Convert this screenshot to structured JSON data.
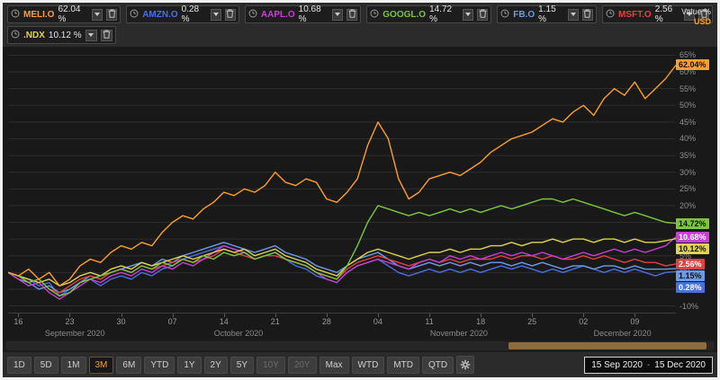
{
  "header": {
    "value_axis_label": "Value %",
    "currency_label": "USD",
    "instruments": [
      {
        "ticker": "MELI.O",
        "change": "62.04 %",
        "color": "#ff9e2b"
      },
      {
        "ticker": "AMZN.O",
        "change": "0.28 %",
        "color": "#4a6fe3"
      },
      {
        "ticker": "AAPL.O",
        "change": "10.68 %",
        "color": "#c93fd4"
      },
      {
        "ticker": "GOOGL.O",
        "change": "14.72 %",
        "color": "#7cc63f"
      },
      {
        "ticker": "FB.O",
        "change": "1.15 %",
        "color": "#6b9ae8"
      },
      {
        "ticker": "MSFT.O",
        "change": "2.56 %",
        "color": "#e2413e"
      },
      {
        "ticker": ".NDX",
        "change": "10.12 %",
        "color": "#ded253"
      }
    ]
  },
  "chart_data": {
    "type": "line",
    "title": "",
    "ylabel": "Value %",
    "currency": "USD",
    "ylim": [
      -12,
      67
    ],
    "grid_step": 5,
    "legend_position": "top",
    "x_ticks": [
      {
        "pos": 0.0154,
        "label": "16"
      },
      {
        "pos": 0.0923,
        "label": "23"
      },
      {
        "pos": 0.1692,
        "label": "30"
      },
      {
        "pos": 0.2462,
        "label": "07"
      },
      {
        "pos": 0.3231,
        "label": "14"
      },
      {
        "pos": 0.4,
        "label": "21"
      },
      {
        "pos": 0.4769,
        "label": "28"
      },
      {
        "pos": 0.5538,
        "label": "04"
      },
      {
        "pos": 0.6308,
        "label": "11"
      },
      {
        "pos": 0.7077,
        "label": "18"
      },
      {
        "pos": 0.7846,
        "label": "25"
      },
      {
        "pos": 0.8615,
        "label": "02"
      },
      {
        "pos": 0.9385,
        "label": "09"
      }
    ],
    "month_labels": [
      {
        "pos": 0.1,
        "label": "September 2020"
      },
      {
        "pos": 0.345,
        "label": "October 2020"
      },
      {
        "pos": 0.675,
        "label": "November 2020"
      },
      {
        "pos": 0.92,
        "label": "December 2020"
      }
    ],
    "series": [
      {
        "name": "AMZN.O",
        "color": "#4a6fe3",
        "last_label": "0.28%",
        "badge_text_color": "#ffffff",
        "values": [
          0,
          -1,
          -2,
          -4,
          -3,
          -7,
          -5,
          -3,
          -2,
          -4,
          -2,
          -1,
          -2,
          0,
          -1,
          1,
          2,
          4,
          5,
          6,
          7,
          8,
          7,
          6,
          4,
          5,
          6,
          4,
          2,
          1,
          -1,
          -2,
          -3,
          0,
          2,
          3,
          4,
          2,
          0,
          -1,
          0,
          1,
          0,
          1,
          0,
          1,
          0,
          1,
          2,
          1,
          2,
          1,
          0,
          1,
          0,
          1,
          2,
          1,
          0,
          1,
          0,
          1,
          0,
          -1,
          0,
          0.28
        ]
      },
      {
        "name": "FB.O",
        "color": "#6b9ae8",
        "last_label": "1.15%",
        "badge_text_color": "#101010",
        "values": [
          0,
          -2,
          -3,
          -5,
          -4,
          -6,
          -5,
          -3,
          -1,
          -2,
          0,
          1,
          2,
          3,
          2,
          4,
          3,
          5,
          6,
          7,
          8,
          9,
          8,
          7,
          6,
          7,
          8,
          6,
          5,
          4,
          2,
          1,
          0,
          2,
          4,
          5,
          6,
          4,
          2,
          1,
          2,
          3,
          2,
          3,
          2,
          3,
          2,
          3,
          3,
          2,
          3,
          2,
          3,
          2,
          1,
          2,
          2,
          1,
          2,
          2,
          1,
          2,
          1,
          1,
          1,
          1.15
        ]
      },
      {
        "name": "MSFT.O",
        "color": "#e2413e",
        "last_label": "2.56%",
        "badge_text_color": "#ffffff",
        "values": [
          0,
          -1,
          -3,
          -2,
          -5,
          -6,
          -4,
          -2,
          -1,
          -2,
          0,
          1,
          0,
          2,
          1,
          2,
          3,
          4,
          3,
          4,
          5,
          7,
          6,
          5,
          4,
          5,
          5,
          4,
          3,
          2,
          0,
          -1,
          -2,
          1,
          3,
          4,
          5,
          4,
          3,
          2,
          3,
          4,
          3,
          4,
          3,
          4,
          4,
          4,
          5,
          4,
          5,
          5,
          4,
          5,
          4,
          4,
          5,
          4,
          5,
          4,
          3,
          4,
          3,
          3,
          2,
          2.56
        ]
      },
      {
        "name": "AAPL.O",
        "color": "#c93fd4",
        "last_label": "10.68%",
        "badge_text_color": "#ffffff",
        "values": [
          0,
          -2,
          -4,
          -3,
          -6,
          -8,
          -6,
          -4,
          -2,
          -3,
          -1,
          0,
          -1,
          1,
          0,
          2,
          1,
          3,
          2,
          4,
          6,
          8,
          7,
          6,
          4,
          5,
          6,
          4,
          3,
          2,
          0,
          -2,
          -3,
          0,
          2,
          3,
          4,
          3,
          2,
          1,
          3,
          4,
          3,
          5,
          4,
          5,
          4,
          5,
          6,
          5,
          6,
          5,
          6,
          5,
          4,
          5,
          6,
          5,
          6,
          7,
          6,
          7,
          6,
          7,
          8,
          10.68
        ]
      },
      {
        "name": ".NDX",
        "color": "#ded253",
        "last_label": "10.12%",
        "badge_text_color": "#101010",
        "values": [
          0,
          -1,
          -2,
          -3,
          -2,
          -4,
          -3,
          -1,
          0,
          -1,
          1,
          2,
          1,
          3,
          2,
          3,
          4,
          5,
          4,
          5,
          6,
          7,
          6,
          7,
          5,
          6,
          7,
          5,
          4,
          3,
          1,
          0,
          -1,
          2,
          4,
          6,
          7,
          6,
          5,
          4,
          5,
          6,
          6,
          7,
          6,
          7,
          7,
          8,
          8,
          9,
          8,
          9,
          9,
          10,
          9,
          10,
          10,
          9,
          10,
          10,
          9,
          10,
          9,
          9,
          9.5,
          10.12
        ]
      },
      {
        "name": "GOOGL.O",
        "color": "#7cc63f",
        "last_label": "14.72%",
        "badge_text_color": "#101010",
        "values": [
          0,
          -1,
          -3,
          -2,
          -5,
          -7,
          -6,
          -3,
          -2,
          -1,
          0,
          1,
          0,
          2,
          1,
          3,
          2,
          4,
          3,
          5,
          4,
          6,
          5,
          6,
          4,
          5,
          6,
          4,
          3,
          2,
          0,
          -1,
          -2,
          2,
          8,
          15,
          20,
          19,
          18,
          17,
          18,
          17,
          18,
          19,
          18,
          19,
          18,
          19,
          20,
          19,
          20,
          21,
          22,
          22,
          21,
          22,
          21,
          20,
          19,
          18,
          17,
          18,
          17,
          16,
          15,
          14.72
        ]
      },
      {
        "name": "MELI.O",
        "color": "#ff9e2b",
        "last_label": "62.04%",
        "badge_text_color": "#101010",
        "values": [
          0,
          -1,
          1,
          -2,
          0,
          -4,
          -2,
          2,
          4,
          3,
          6,
          8,
          7,
          9,
          8,
          12,
          15,
          17,
          16,
          19,
          21,
          24,
          23,
          25,
          24,
          26,
          30,
          27,
          26,
          28,
          27,
          22,
          21,
          24,
          28,
          38,
          45,
          40,
          28,
          22,
          24,
          28,
          29,
          30,
          29,
          31,
          33,
          36,
          38,
          40,
          41,
          42,
          44,
          46,
          45,
          48,
          50,
          47,
          52,
          55,
          53,
          57,
          52,
          55,
          58,
          62.04
        ]
      }
    ]
  },
  "slider": {
    "start": 0.71,
    "end": 0.99
  },
  "toolbar": {
    "buttons": [
      {
        "label": "1D"
      },
      {
        "label": "5D"
      },
      {
        "label": "1M"
      },
      {
        "label": "3M",
        "active": true
      },
      {
        "label": "6M"
      },
      {
        "label": "YTD"
      },
      {
        "label": "1Y"
      },
      {
        "label": "2Y"
      },
      {
        "label": "5Y"
      },
      {
        "label": "10Y",
        "disabled": true
      },
      {
        "label": "20Y",
        "disabled": true
      },
      {
        "label": "Max"
      },
      {
        "label": "WTD"
      },
      {
        "label": "MTD"
      },
      {
        "label": "QTD"
      }
    ],
    "date_from": "15 Sep 2020",
    "date_separator": "-",
    "date_to": "15 Dec 2020"
  }
}
